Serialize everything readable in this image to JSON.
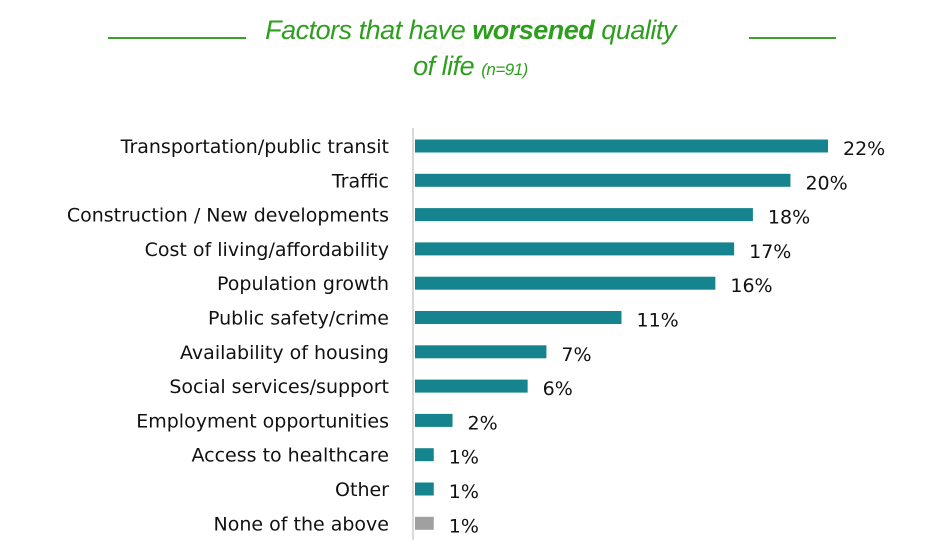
{
  "chart_data": {
    "type": "bar",
    "orientation": "horizontal",
    "title": {
      "prefix": "Factors that have ",
      "emphasis": "worsened",
      "suffix": " quality",
      "line2": "of life",
      "sample": "(n=91)"
    },
    "xlabel": "",
    "ylabel": "",
    "xlim": [
      0,
      22
    ],
    "grid": false,
    "legend": "none",
    "categories": [
      "Transportation/public transit",
      "Traffic",
      "Construction / New developments",
      "Cost of living/affordability",
      "Population growth",
      "Public safety/crime",
      "Availability of housing",
      "Social services/support",
      "Employment opportunities",
      "Access to healthcare",
      "Other",
      "None of the above"
    ],
    "values": [
      22,
      20,
      18,
      17,
      16,
      11,
      7,
      6,
      2,
      1,
      1,
      1
    ],
    "value_labels": [
      "22%",
      "20%",
      "18%",
      "17%",
      "16%",
      "11%",
      "7%",
      "6%",
      "2%",
      "1%",
      "1%",
      "1%"
    ],
    "bar_colors": [
      "#16848e",
      "#16848e",
      "#16848e",
      "#16848e",
      "#16848e",
      "#16848e",
      "#16848e",
      "#16848e",
      "#16848e",
      "#16848e",
      "#16848e",
      "#a0a0a0"
    ],
    "title_color": "#2e9e1e"
  }
}
